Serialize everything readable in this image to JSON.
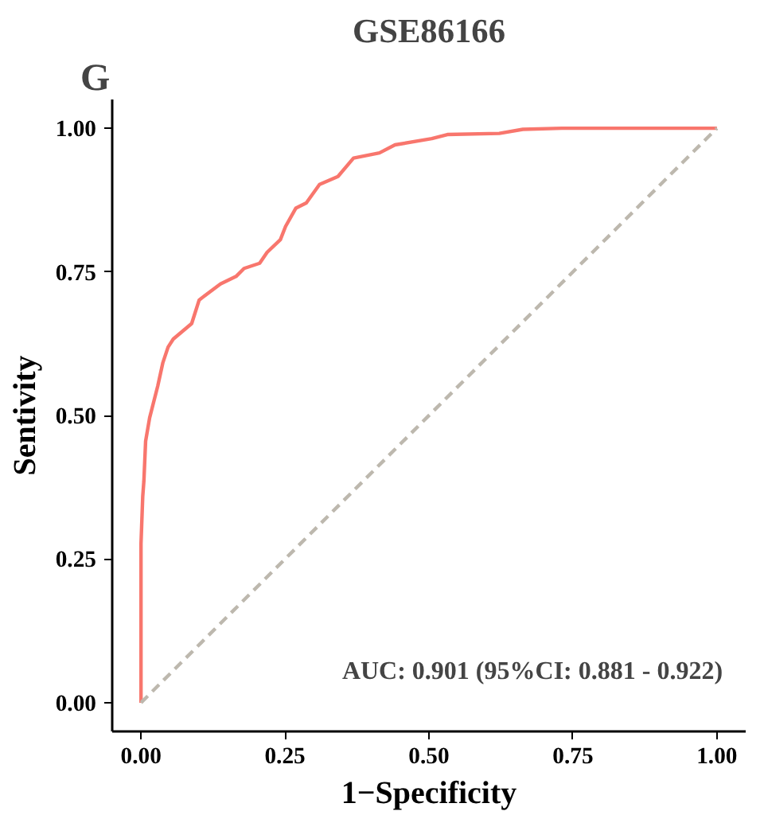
{
  "chart_data": {
    "type": "line",
    "title": "GSE86166",
    "xlabel": "1−Specificity",
    "ylabel": "Sentivity",
    "annotations": [
      "G",
      "AUC: 0.901 (95%CI: 0.881 - 0.922)"
    ],
    "xlim": [
      -0.05,
      1.05
    ],
    "ylim": [
      -0.05,
      1.05
    ],
    "xticks": [
      {
        "value": 0,
        "label": "0.00"
      },
      {
        "value": 0.25,
        "label": "0.25"
      },
      {
        "value": 0.5,
        "label": "0.50"
      },
      {
        "value": 0.75,
        "label": "0.75"
      },
      {
        "value": 1,
        "label": "1.00"
      }
    ],
    "yticks": [
      {
        "value": 0,
        "label": "0.00"
      },
      {
        "value": 0.25,
        "label": "0.25"
      },
      {
        "value": 0.5,
        "label": "0.50"
      },
      {
        "value": 0.75,
        "label": "0.75"
      },
      {
        "value": 1,
        "label": "1.00"
      }
    ],
    "series": [
      {
        "color": "#f8766d",
        "line_style": "solid",
        "x": [
          0,
          0,
          0.003,
          0.005,
          0.008,
          0.015,
          0.029,
          0.038,
          0.047,
          0.056,
          0.088,
          0.101,
          0.138,
          0.165,
          0.179,
          0.206,
          0.219,
          0.242,
          0.251,
          0.269,
          0.287,
          0.31,
          0.342,
          0.369,
          0.414,
          0.441,
          0.505,
          0.532,
          0.622,
          0.663,
          0.731,
          1.0
        ],
        "values": [
          0,
          0.277,
          0.359,
          0.386,
          0.455,
          0.496,
          0.551,
          0.592,
          0.619,
          0.633,
          0.66,
          0.701,
          0.729,
          0.742,
          0.756,
          0.765,
          0.784,
          0.806,
          0.829,
          0.861,
          0.87,
          0.902,
          0.916,
          0.948,
          0.957,
          0.971,
          0.982,
          0.989,
          0.991,
          0.998,
          1.0,
          1.0
        ]
      },
      {
        "color": "#bdb8ae",
        "line_style": "dashed",
        "x": [
          0,
          1
        ],
        "values": [
          0,
          1
        ]
      }
    ]
  }
}
